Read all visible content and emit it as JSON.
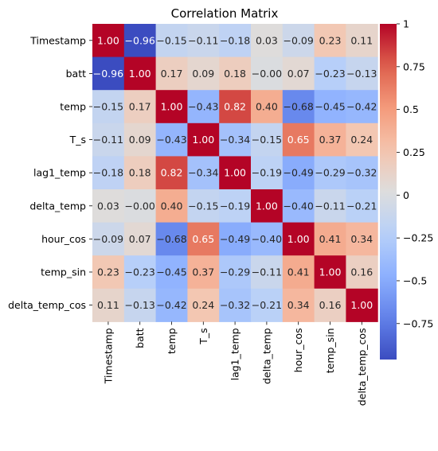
{
  "chart_data": {
    "type": "heatmap",
    "title": "Correlation Matrix",
    "labels": [
      "Timestamp",
      "batt",
      "temp",
      "T_s",
      "lag1_temp",
      "delta_temp",
      "hour_cos",
      "temp_sin",
      "delta_temp_cos"
    ],
    "values": [
      [
        1.0,
        -0.96,
        -0.15,
        -0.11,
        -0.18,
        0.03,
        -0.09,
        0.23,
        0.11
      ],
      [
        -0.96,
        1.0,
        0.17,
        0.09,
        0.18,
        -0.0,
        0.07,
        -0.23,
        -0.13
      ],
      [
        -0.15,
        0.17,
        1.0,
        -0.43,
        0.82,
        0.4,
        -0.68,
        -0.45,
        -0.42
      ],
      [
        -0.11,
        0.09,
        -0.43,
        1.0,
        -0.34,
        -0.15,
        0.65,
        0.37,
        0.24
      ],
      [
        -0.18,
        0.18,
        0.82,
        -0.34,
        1.0,
        -0.19,
        -0.49,
        -0.29,
        -0.32
      ],
      [
        0.03,
        -0.0,
        0.4,
        -0.15,
        -0.19,
        1.0,
        -0.4,
        -0.11,
        -0.21
      ],
      [
        -0.09,
        0.07,
        -0.68,
        0.65,
        -0.49,
        -0.4,
        1.0,
        0.41,
        0.34
      ],
      [
        0.23,
        -0.23,
        -0.45,
        0.37,
        -0.29,
        -0.11,
        0.41,
        1.0,
        0.16
      ],
      [
        0.11,
        -0.13,
        -0.42,
        0.24,
        -0.32,
        -0.21,
        0.34,
        0.16,
        1.0
      ]
    ],
    "colormap": "coolwarm",
    "vmin": -0.96,
    "vmax": 1.0,
    "colorbar_ticks": [
      "1",
      "0.75",
      "0.5",
      "0.25",
      "0",
      "−0.25",
      "−0.5",
      "−0.75"
    ],
    "colorbar_tick_values": [
      1,
      0.75,
      0.5,
      0.25,
      0,
      -0.25,
      -0.5,
      -0.75
    ],
    "annotated": true
  }
}
